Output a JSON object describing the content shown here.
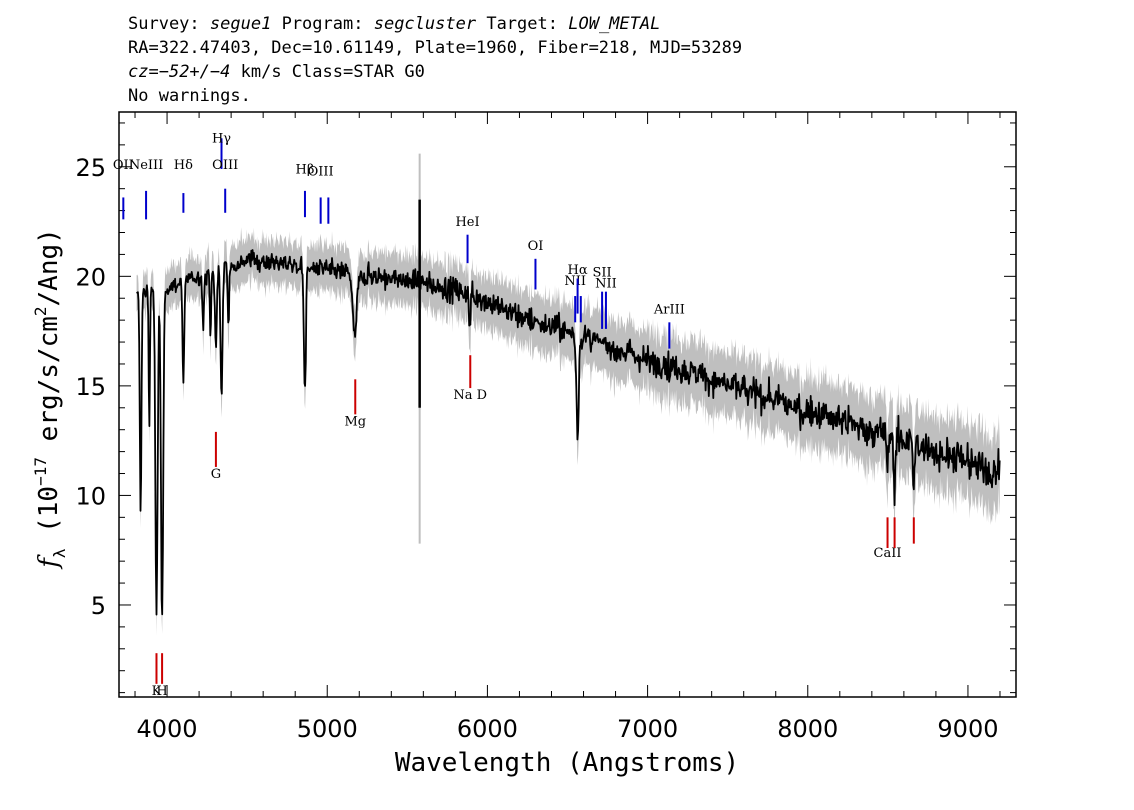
{
  "header": {
    "survey_label": "Survey:",
    "survey": "segue1",
    "program_label": "Program:",
    "program": "segcluster",
    "target_label": "Target:",
    "target": "LOW_METAL",
    "coords": "RA=322.47403, Dec=10.61149, Plate=1960, Fiber=218, MJD=53289",
    "cz_label": "cz=",
    "cz_value": "−52+/−4",
    "cz_rest": " km/s Class=STAR G0",
    "warnings": "No warnings."
  },
  "chart_data": {
    "type": "line",
    "xlabel": "Wavelength (Angstroms)",
    "ylabel_prefix": "f",
    "ylabel_sub": "λ",
    "ylabel_open": "(10",
    "ylabel_exp": "−17",
    "ylabel_mid": "erg/s/cm",
    "ylabel_sq": "2",
    "ylabel_end": "/Ang)",
    "xlim": [
      3700,
      9300
    ],
    "ylim": [
      0.8,
      27.5
    ],
    "xticks": [
      4000,
      5000,
      6000,
      7000,
      8000,
      9000
    ],
    "yticks": [
      5,
      10,
      15,
      20,
      25
    ],
    "colors": {
      "spectrum": "#000000",
      "error_band": "#bfbfbf",
      "emission_lines": "#0000cc",
      "absorption_lines": "#cc0000"
    },
    "continuum": [
      [
        3800,
        19.0
      ],
      [
        3900,
        19.5
      ],
      [
        4000,
        19.5
      ],
      [
        4200,
        20.0
      ],
      [
        4500,
        20.8
      ],
      [
        4800,
        20.5
      ],
      [
        5000,
        20.3
      ],
      [
        5300,
        20.0
      ],
      [
        5600,
        19.7
      ],
      [
        5900,
        19.2
      ],
      [
        6200,
        18.2
      ],
      [
        6600,
        17.2
      ],
      [
        7000,
        16.2
      ],
      [
        7400,
        15.3
      ],
      [
        7800,
        14.3
      ],
      [
        8200,
        13.4
      ],
      [
        8600,
        12.5
      ],
      [
        9000,
        11.5
      ],
      [
        9200,
        11.0
      ]
    ],
    "absorption_features": [
      {
        "wavelength": 3835,
        "depth": 10.0,
        "width": 5
      },
      {
        "wavelength": 3889,
        "depth": 6.0,
        "width": 4
      },
      {
        "wavelength": 3934,
        "depth": 15.0,
        "width": 7
      },
      {
        "wavelength": 3969,
        "depth": 15.5,
        "width": 7
      },
      {
        "wavelength": 4102,
        "depth": 5.0,
        "width": 5
      },
      {
        "wavelength": 4226,
        "depth": 2.5,
        "width": 5
      },
      {
        "wavelength": 4271,
        "depth": 3.0,
        "width": 4
      },
      {
        "wavelength": 4305,
        "depth": 3.5,
        "width": 6
      },
      {
        "wavelength": 4340,
        "depth": 6.0,
        "width": 6
      },
      {
        "wavelength": 4383,
        "depth": 3.0,
        "width": 4
      },
      {
        "wavelength": 4861,
        "depth": 6.0,
        "width": 6
      },
      {
        "wavelength": 5172,
        "depth": 3.0,
        "width": 12
      },
      {
        "wavelength": 5890,
        "depth": 1.5,
        "width": 5
      },
      {
        "wavelength": 6563,
        "depth": 4.5,
        "width": 7
      },
      {
        "wavelength": 8498,
        "depth": 1.5,
        "width": 5
      },
      {
        "wavelength": 8542,
        "depth": 2.5,
        "width": 5
      },
      {
        "wavelength": 8662,
        "depth": 2.2,
        "width": 5
      }
    ],
    "spikes": [
      {
        "wavelength": 5577,
        "low": 14.0,
        "high": 23.5,
        "err_low": 7.8,
        "err_high": 25.6
      }
    ],
    "line_labels": [
      {
        "label": "OII",
        "wavelength": 3727,
        "kind": "emission",
        "y_top": 23.6,
        "y_bot": 22.6,
        "label_y": 24.9
      },
      {
        "label": "NeIII",
        "wavelength": 3869,
        "kind": "emission",
        "y_top": 23.9,
        "y_bot": 22.6,
        "label_y": 24.9
      },
      {
        "label": "Hδ",
        "wavelength": 4102,
        "kind": "emission",
        "y_top": 23.8,
        "y_bot": 22.9,
        "label_y": 24.9
      },
      {
        "label": "Hγ",
        "wavelength": 4340,
        "kind": "emission",
        "y_top": 26.3,
        "y_bot": 24.9,
        "label_y": 26.1
      },
      {
        "label": "OIII",
        "wavelength": 4363,
        "kind": "emission",
        "y_top": 24.0,
        "y_bot": 22.9,
        "label_y": 24.9
      },
      {
        "label": "Hβ",
        "wavelength": 4861,
        "kind": "emission",
        "y_top": 23.9,
        "y_bot": 22.7,
        "label_y": 24.7
      },
      {
        "label": "OIII",
        "wavelength": 4959,
        "kind": "emission",
        "y_top": 23.6,
        "y_bot": 22.4,
        "label_y": 24.6
      },
      {
        "label": "",
        "wavelength": 5007,
        "kind": "emission",
        "y_top": 23.6,
        "y_bot": 22.4,
        "label_y": 24.6
      },
      {
        "label": "HeI",
        "wavelength": 5876,
        "kind": "emission",
        "y_top": 21.9,
        "y_bot": 20.6,
        "label_y": 22.3
      },
      {
        "label": "OI",
        "wavelength": 6300,
        "kind": "emission",
        "y_top": 20.8,
        "y_bot": 19.4,
        "label_y": 21.2
      },
      {
        "label": "NII",
        "wavelength": 6548,
        "kind": "emission",
        "y_top": 19.1,
        "y_bot": 17.9,
        "label_y": 19.6
      },
      {
        "label": "Hα",
        "wavelength": 6563,
        "kind": "emission",
        "y_top": 19.9,
        "y_bot": 18.3,
        "label_y": 20.1
      },
      {
        "label": "",
        "wavelength": 6583,
        "kind": "emission",
        "y_top": 19.1,
        "y_bot": 17.9,
        "label_y": 19.6
      },
      {
        "label": "SII",
        "wavelength": 6716,
        "kind": "emission",
        "y_top": 19.3,
        "y_bot": 17.6,
        "label_y": 20.0
      },
      {
        "label": "NII",
        "wavelength": 6740,
        "kind": "emission",
        "y_top": 19.3,
        "y_bot": 17.6,
        "label_y": 19.5
      },
      {
        "label": "ArIII",
        "wavelength": 7136,
        "kind": "emission",
        "y_top": 17.9,
        "y_bot": 16.7,
        "label_y": 18.3
      },
      {
        "label": "K",
        "wavelength": 3934,
        "kind": "absorption",
        "y_top": 2.8,
        "y_bot": 1.4,
        "label_y": 0.9
      },
      {
        "label": "H",
        "wavelength": 3969,
        "kind": "absorption",
        "y_top": 2.8,
        "y_bot": 1.4,
        "label_y": 0.9
      },
      {
        "label": "G",
        "wavelength": 4305,
        "kind": "absorption",
        "y_top": 12.9,
        "y_bot": 11.3,
        "label_y": 10.8
      },
      {
        "label": "Mg",
        "wavelength": 5175,
        "kind": "absorption",
        "y_top": 15.3,
        "y_bot": 13.7,
        "label_y": 13.2
      },
      {
        "label": "Na D",
        "wavelength": 5893,
        "kind": "absorption",
        "y_top": 16.4,
        "y_bot": 14.9,
        "label_y": 14.4
      },
      {
        "label": "CaII",
        "wavelength": 8498,
        "kind": "absorption",
        "y_top": 9.0,
        "y_bot": 7.6,
        "label_y": 7.2
      },
      {
        "label": "",
        "wavelength": 8542,
        "kind": "absorption",
        "y_top": 9.0,
        "y_bot": 7.6,
        "label_y": 7.2
      },
      {
        "label": "",
        "wavelength": 8662,
        "kind": "absorption",
        "y_top": 9.0,
        "y_bot": 7.8,
        "label_y": 7.2
      }
    ]
  }
}
